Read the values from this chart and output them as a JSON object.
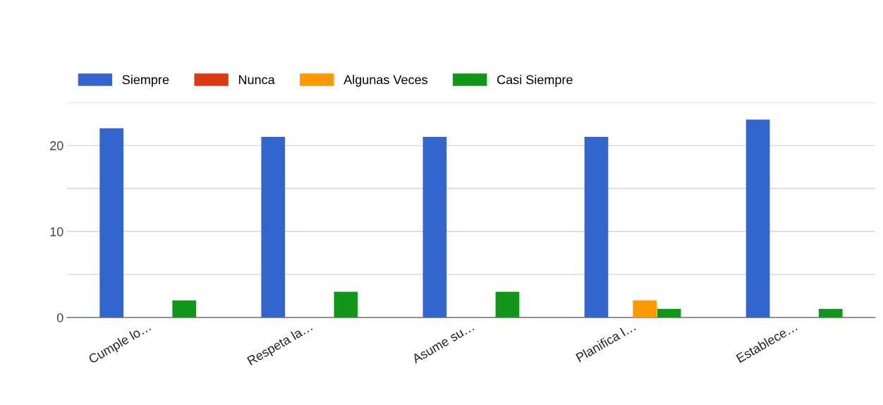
{
  "chart_data": {
    "type": "bar",
    "categories": [
      "Cumple lo…",
      "Respeta la…",
      "Asume su…",
      "Planifica l…",
      "Establece…"
    ],
    "series": [
      {
        "name": "Siempre",
        "color": "#3366cc",
        "values": [
          22,
          21,
          21,
          21,
          23
        ]
      },
      {
        "name": "Nunca",
        "color": "#dc3912",
        "values": [
          0,
          0,
          0,
          0,
          0
        ]
      },
      {
        "name": "Algunas Veces",
        "color": "#ff9900",
        "values": [
          0,
          0,
          0,
          2,
          0
        ]
      },
      {
        "name": "Casi Siempre",
        "color": "#109618",
        "values": [
          2,
          3,
          3,
          1,
          1
        ]
      }
    ],
    "ylim": [
      0,
      25
    ],
    "yticks": [
      0,
      {
        "value": 5,
        "label": null
      },
      10,
      {
        "value": 15,
        "label": null
      },
      20,
      {
        "value": 25,
        "label": null
      }
    ],
    "grid": "y",
    "legend": "top left"
  }
}
